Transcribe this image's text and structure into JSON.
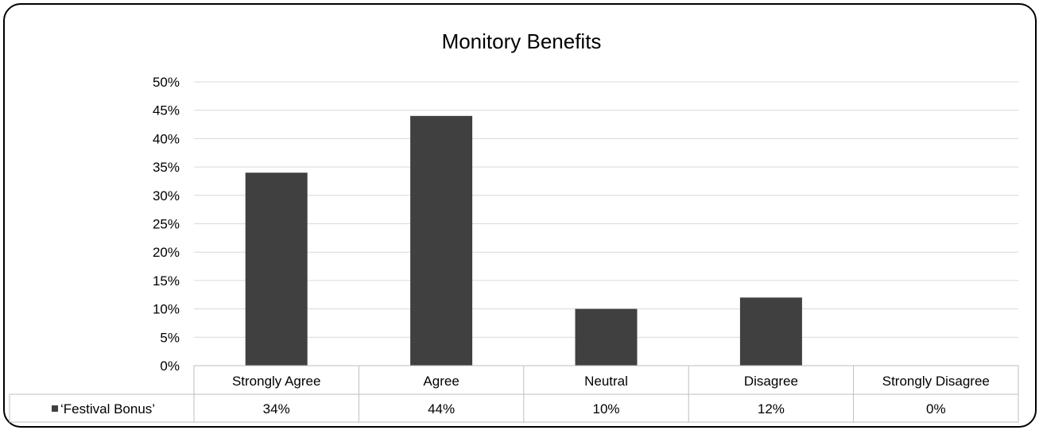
{
  "chart_data": {
    "type": "bar",
    "title": "Monitory Benefits",
    "categories": [
      "Strongly Agree",
      "Agree",
      "Neutral",
      "Disagree",
      "Strongly Disagree"
    ],
    "series": [
      {
        "name": "‘Festival Bonus’",
        "values": [
          34,
          44,
          10,
          12,
          0
        ],
        "labels": [
          "34%",
          "44%",
          "10%",
          "12%",
          "0%"
        ]
      }
    ],
    "yticks": [
      "0%",
      "5%",
      "10%",
      "15%",
      "20%",
      "25%",
      "30%",
      "35%",
      "40%",
      "45%",
      "50%"
    ],
    "ylim": [
      0,
      50
    ],
    "grid": true,
    "legend_placement": "data-table-left",
    "colors": {
      "bar": "#404040",
      "grid": "#d9d9d9",
      "table_border": "#bfbfbf"
    }
  }
}
